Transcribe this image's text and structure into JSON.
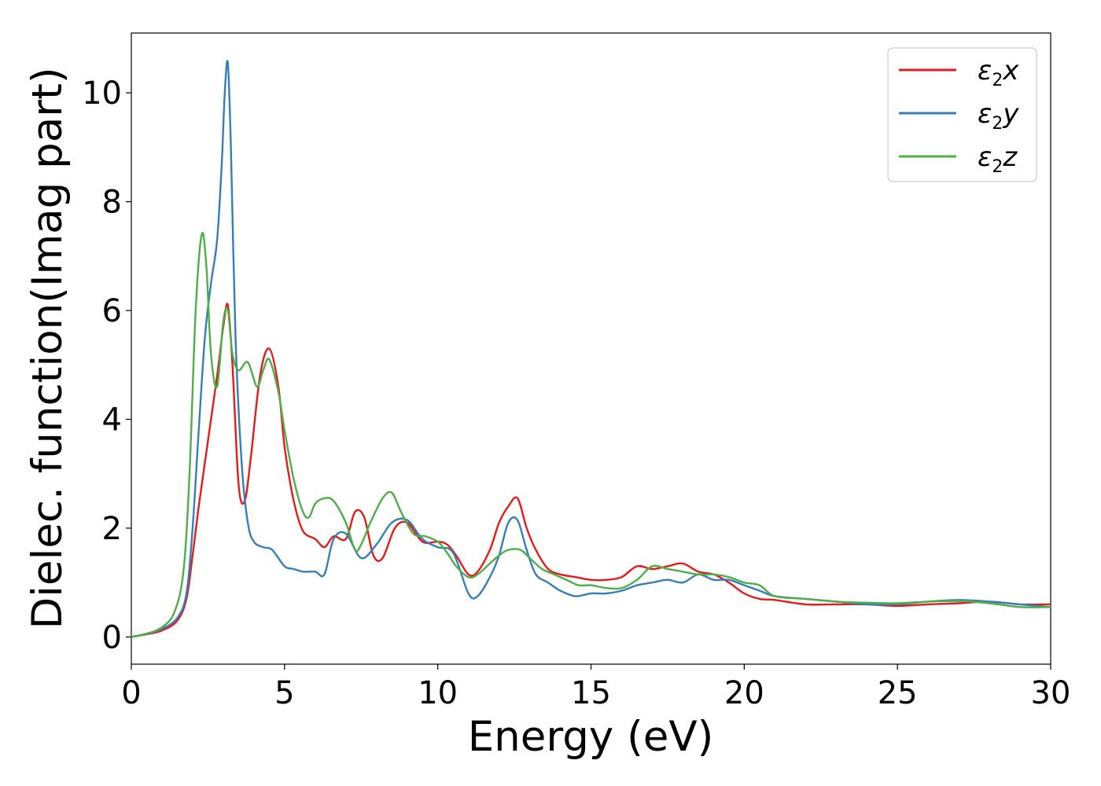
{
  "chart_data": {
    "type": "line",
    "title": "",
    "xlabel": "Energy (eV)",
    "ylabel": "Dielec. function(Imag part)",
    "xlim": [
      0,
      30
    ],
    "ylim": [
      -0.5,
      11.1
    ],
    "xticks": [
      0,
      5,
      10,
      15,
      20,
      25,
      30
    ],
    "yticks": [
      0,
      2,
      4,
      6,
      8,
      10
    ],
    "grid": false,
    "legend_position": "top-right",
    "series": [
      {
        "name": "x",
        "legend_symbol": "ε",
        "legend_sub": "2",
        "color": "#e41a1c",
        "x": [
          0,
          0.5,
          1.0,
          1.5,
          1.8,
          2.0,
          2.2,
          2.5,
          2.8,
          3.0,
          3.15,
          3.3,
          3.5,
          3.7,
          3.9,
          4.2,
          4.5,
          4.8,
          5.0,
          5.3,
          5.6,
          6.0,
          6.3,
          6.6,
          7.0,
          7.3,
          7.6,
          7.9,
          8.2,
          8.6,
          9.0,
          9.5,
          10.0,
          10.3,
          10.6,
          11.0,
          11.3,
          11.7,
          12.0,
          12.3,
          12.6,
          12.9,
          13.2,
          13.6,
          14.0,
          14.5,
          15.0,
          15.5,
          16.0,
          16.5,
          17.0,
          17.5,
          18.0,
          18.5,
          19.0,
          19.5,
          20.0,
          20.5,
          21.0,
          22.0,
          23.0,
          24.0,
          25.0,
          26.0,
          27.0,
          28.0,
          29.0,
          30.0
        ],
        "values": [
          0,
          0.05,
          0.12,
          0.3,
          0.7,
          1.5,
          2.4,
          3.6,
          4.8,
          5.7,
          6.1,
          5.0,
          2.8,
          2.5,
          3.3,
          4.8,
          5.3,
          4.6,
          3.5,
          2.5,
          1.95,
          1.8,
          1.65,
          1.85,
          1.8,
          2.3,
          2.2,
          1.5,
          1.45,
          2.0,
          2.1,
          1.75,
          1.75,
          1.7,
          1.5,
          1.15,
          1.2,
          1.6,
          2.1,
          2.4,
          2.55,
          2.0,
          1.6,
          1.25,
          1.15,
          1.1,
          1.05,
          1.05,
          1.1,
          1.3,
          1.25,
          1.3,
          1.35,
          1.2,
          1.15,
          1.0,
          0.8,
          0.7,
          0.68,
          0.6,
          0.6,
          0.6,
          0.57,
          0.6,
          0.62,
          0.65,
          0.6,
          0.6
        ]
      },
      {
        "name": "y",
        "legend_symbol": "ε",
        "legend_sub": "2",
        "color": "#377eb8",
        "x": [
          0,
          0.5,
          1.0,
          1.5,
          1.8,
          2.0,
          2.2,
          2.4,
          2.6,
          2.8,
          2.95,
          3.05,
          3.15,
          3.25,
          3.4,
          3.6,
          3.8,
          4.0,
          4.3,
          4.6,
          5.0,
          5.3,
          5.6,
          6.0,
          6.3,
          6.6,
          7.0,
          7.5,
          8.0,
          8.5,
          9.0,
          9.5,
          10.0,
          10.5,
          11.0,
          11.3,
          11.7,
          12.0,
          12.3,
          12.6,
          12.9,
          13.2,
          13.6,
          14.0,
          14.5,
          15.0,
          15.5,
          16.0,
          16.5,
          17.0,
          17.5,
          18.0,
          18.5,
          19.0,
          19.5,
          20.0,
          20.5,
          21.0,
          22.0,
          23.0,
          24.0,
          25.0,
          26.0,
          27.0,
          28.0,
          29.0,
          30.0
        ],
        "values": [
          0,
          0.06,
          0.15,
          0.35,
          0.8,
          2.0,
          3.8,
          5.5,
          6.5,
          7.3,
          8.7,
          10.0,
          10.55,
          9.0,
          5.5,
          3.2,
          2.1,
          1.75,
          1.65,
          1.6,
          1.3,
          1.25,
          1.2,
          1.2,
          1.15,
          1.8,
          1.9,
          1.45,
          1.7,
          2.1,
          2.15,
          1.8,
          1.65,
          1.55,
          0.8,
          0.75,
          1.1,
          1.5,
          2.1,
          2.15,
          1.6,
          1.15,
          1.0,
          0.85,
          0.75,
          0.8,
          0.8,
          0.85,
          0.95,
          1.0,
          1.05,
          1.0,
          1.15,
          1.05,
          1.05,
          0.95,
          0.85,
          0.75,
          0.7,
          0.65,
          0.6,
          0.6,
          0.65,
          0.68,
          0.65,
          0.6,
          0.55
        ]
      },
      {
        "name": "z",
        "legend_symbol": "ε",
        "legend_sub": "2",
        "color": "#4daf4a",
        "x": [
          0,
          0.5,
          1.0,
          1.4,
          1.7,
          1.9,
          2.1,
          2.3,
          2.45,
          2.6,
          2.8,
          3.0,
          3.15,
          3.3,
          3.5,
          3.8,
          4.1,
          4.3,
          4.5,
          4.8,
          5.0,
          5.3,
          5.6,
          5.8,
          6.0,
          6.3,
          6.6,
          7.0,
          7.3,
          7.5,
          7.8,
          8.2,
          8.5,
          8.8,
          9.2,
          9.6,
          10.0,
          10.3,
          10.6,
          11.0,
          11.3,
          11.7,
          12.0,
          12.3,
          12.7,
          13.0,
          13.4,
          13.8,
          14.2,
          14.6,
          15.0,
          15.5,
          16.0,
          16.5,
          17.0,
          17.5,
          18.0,
          18.5,
          19.0,
          19.5,
          20.0,
          20.5,
          21.0,
          22.0,
          23.0,
          24.0,
          25.0,
          26.0,
          27.0,
          28.0,
          29.0,
          30.0
        ],
        "values": [
          0,
          0.06,
          0.18,
          0.45,
          1.2,
          3.0,
          6.0,
          7.4,
          6.8,
          5.2,
          4.6,
          5.8,
          6.0,
          5.2,
          4.9,
          5.05,
          4.6,
          4.9,
          5.1,
          4.5,
          3.8,
          2.9,
          2.3,
          2.2,
          2.45,
          2.55,
          2.5,
          2.1,
          1.6,
          1.7,
          2.1,
          2.55,
          2.65,
          2.3,
          1.9,
          1.85,
          1.75,
          1.55,
          1.3,
          1.1,
          1.15,
          1.35,
          1.5,
          1.6,
          1.6,
          1.45,
          1.25,
          1.15,
          1.05,
          0.95,
          0.95,
          0.9,
          0.9,
          1.05,
          1.3,
          1.25,
          1.2,
          1.15,
          1.15,
          1.1,
          1.0,
          0.95,
          0.75,
          0.7,
          0.65,
          0.63,
          0.62,
          0.65,
          0.66,
          0.62,
          0.55,
          0.55
        ]
      }
    ]
  }
}
